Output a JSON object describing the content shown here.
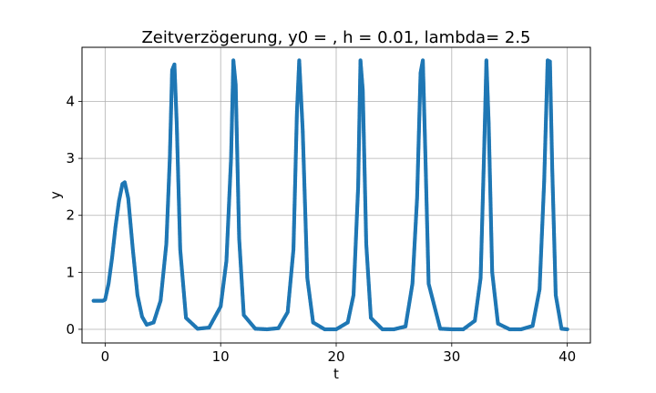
{
  "chart_data": {
    "type": "scatter",
    "title": "Zeitverzögerung, y0 = , h = 0.01, lambda= 2.5",
    "xlabel": "t",
    "ylabel": "y",
    "xlim": [
      -2.0,
      42.0
    ],
    "ylim": [
      -0.24,
      4.95
    ],
    "xticks": [
      0,
      10,
      20,
      30,
      40
    ],
    "yticks": [
      0,
      1,
      2,
      3,
      4
    ],
    "grid": true,
    "marker_color": "#1f77b4",
    "series": [
      {
        "x": [
          -1,
          -0.6,
          -0.2,
          0,
          0.3,
          0.6,
          0.9,
          1.2,
          1.5,
          1.7,
          2.0,
          2.4,
          2.8,
          3.2,
          3.6,
          4.2,
          4.8,
          5.3,
          5.6,
          5.8,
          6.0,
          6.2,
          6.5,
          7.0,
          8.0,
          9.0,
          10.0,
          10.5,
          10.9,
          11.1,
          11.3,
          11.6,
          12.0,
          13.0,
          14.0,
          15.0,
          15.8,
          16.3,
          16.6,
          16.8,
          17.1,
          17.5,
          18.0,
          19.0,
          20.0,
          21.0,
          21.5,
          21.9,
          22.1,
          22.3,
          22.6,
          23.0,
          24.0,
          25.0,
          26.0,
          26.6,
          27.0,
          27.3,
          27.5,
          27.7,
          28.0,
          29.0,
          30.0,
          31.0,
          32.0,
          32.5,
          32.8,
          33.0,
          33.2,
          33.5,
          34.0,
          35.0,
          36.0,
          37.0,
          37.6,
          38.0,
          38.3,
          38.5,
          38.7,
          39.0,
          39.5,
          40.0
        ],
        "y": [
          0.5,
          0.5,
          0.5,
          0.52,
          0.8,
          1.25,
          1.8,
          2.25,
          2.55,
          2.58,
          2.3,
          1.4,
          0.6,
          0.22,
          0.08,
          0.12,
          0.5,
          1.5,
          3.0,
          4.55,
          4.65,
          3.6,
          1.4,
          0.2,
          0.01,
          0.03,
          0.4,
          1.2,
          3.0,
          4.72,
          4.3,
          1.6,
          0.25,
          0.01,
          0.0,
          0.02,
          0.3,
          1.4,
          3.8,
          4.72,
          3.5,
          0.9,
          0.12,
          0.0,
          0.0,
          0.12,
          0.6,
          2.5,
          4.72,
          4.2,
          1.5,
          0.2,
          0.0,
          0.0,
          0.05,
          0.8,
          2.3,
          4.5,
          4.72,
          3.2,
          0.8,
          0.01,
          0.0,
          0.0,
          0.15,
          0.9,
          3.1,
          4.72,
          3.6,
          1.0,
          0.1,
          0.0,
          0.0,
          0.06,
          0.7,
          2.6,
          4.72,
          4.7,
          2.8,
          0.6,
          0.01,
          0.0
        ]
      }
    ]
  }
}
